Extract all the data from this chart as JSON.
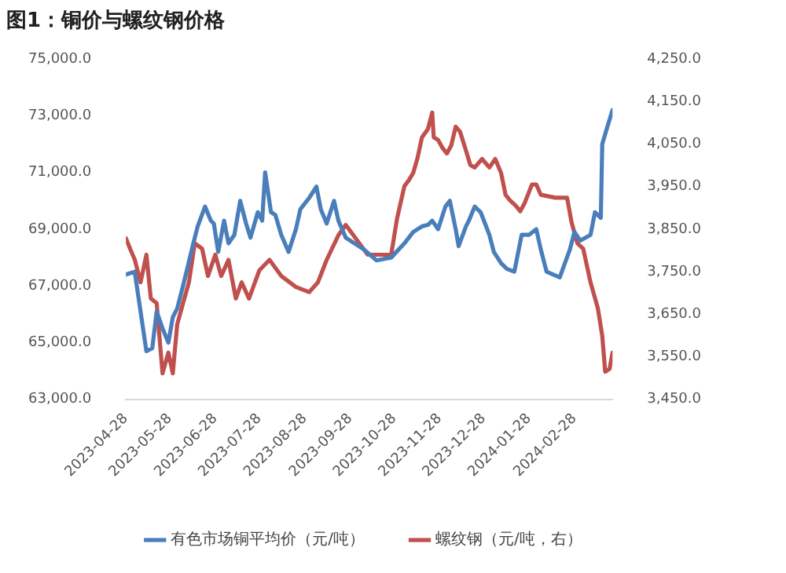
{
  "chart_data": {
    "type": "line",
    "title": "图1：铜价与螺纹钢价格",
    "xlim": [
      "2023-04-28",
      "2024-03-25"
    ],
    "xticks": [
      "2023-04-28",
      "2023-05-28",
      "2023-06-28",
      "2023-07-28",
      "2023-08-28",
      "2023-09-28",
      "2023-10-28",
      "2023-11-28",
      "2023-12-28",
      "2024-01-28",
      "2024-02-28"
    ],
    "ylim": [
      63000,
      75000
    ],
    "yticks": [
      {
        "value": 63000,
        "label": "63,000.0"
      },
      {
        "value": 65000,
        "label": "65,000.0"
      },
      {
        "value": 67000,
        "label": "67,000.0"
      },
      {
        "value": 69000,
        "label": "69,000.0"
      },
      {
        "value": 71000,
        "label": "71,000.0"
      },
      {
        "value": 73000,
        "label": "73,000.0"
      },
      {
        "value": 75000,
        "label": "75,000.0"
      }
    ],
    "y2lim": [
      3450,
      4250
    ],
    "y2ticks": [
      {
        "value": 3450,
        "label": "3,450.0"
      },
      {
        "value": 3550,
        "label": "3,550.0"
      },
      {
        "value": 3650,
        "label": "3,650.0"
      },
      {
        "value": 3750,
        "label": "3,750.0"
      },
      {
        "value": 3850,
        "label": "3,850.0"
      },
      {
        "value": 3950,
        "label": "3,950.0"
      },
      {
        "value": 4050,
        "label": "4,050.0"
      },
      {
        "value": 4150,
        "label": "4,150.0"
      },
      {
        "value": 4250,
        "label": "4,250.0"
      }
    ],
    "grid": false,
    "legend": "bottom",
    "marker": "none",
    "line_style": "solid",
    "series": [
      {
        "name": "有色市场铜平均价（元/吨）",
        "color": "#4a7ebb",
        "x": [
          "2023-04-28",
          "2023-05-04",
          "2023-05-12",
          "2023-05-16",
          "2023-05-19",
          "2023-05-23",
          "2023-05-27",
          "2023-05-30",
          "2023-06-02",
          "2023-06-06",
          "2023-06-13",
          "2023-06-16",
          "2023-06-21",
          "2023-06-25",
          "2023-06-27",
          "2023-06-30",
          "2023-07-04",
          "2023-07-07",
          "2023-07-11",
          "2023-07-15",
          "2023-07-19",
          "2023-07-22",
          "2023-07-27",
          "2023-07-30",
          "2023-08-01",
          "2023-08-05",
          "2023-08-08",
          "2023-08-12",
          "2023-08-17",
          "2023-08-22",
          "2023-08-25",
          "2023-08-31",
          "2023-09-05",
          "2023-09-08",
          "2023-09-12",
          "2023-09-17",
          "2023-09-20",
          "2023-09-25",
          "2023-10-07",
          "2023-10-16",
          "2023-10-26",
          "2023-11-04",
          "2023-11-10",
          "2023-11-16",
          "2023-11-20",
          "2023-11-23",
          "2023-11-27",
          "2023-12-02",
          "2023-12-05",
          "2023-12-09",
          "2023-12-11",
          "2023-12-16",
          "2023-12-18",
          "2023-12-22",
          "2023-12-26",
          "2024-01-01",
          "2024-01-04",
          "2024-01-09",
          "2024-01-13",
          "2024-01-18",
          "2024-01-23",
          "2024-01-28",
          "2024-02-02",
          "2024-02-05",
          "2024-02-09",
          "2024-02-18",
          "2024-02-25",
          "2024-02-28",
          "2024-03-03",
          "2024-03-10",
          "2024-03-13",
          "2024-03-17",
          "2024-03-18",
          "2024-03-22",
          "2024-03-25"
        ],
        "values": [
          67400,
          67500,
          64700,
          64800,
          66100,
          65500,
          65000,
          65900,
          66200,
          67000,
          68500,
          69100,
          69800,
          69300,
          69200,
          68200,
          69300,
          68500,
          68800,
          70000,
          69200,
          68700,
          69600,
          69300,
          71000,
          69600,
          69500,
          68800,
          68200,
          69000,
          69700,
          70100,
          70500,
          69700,
          69200,
          70000,
          69300,
          68700,
          68300,
          67900,
          68000,
          68500,
          68900,
          69100,
          69150,
          69300,
          69000,
          69800,
          70000,
          69000,
          68400,
          69100,
          69300,
          69800,
          69600,
          68800,
          68200,
          67800,
          67600,
          67500,
          68800,
          68800,
          69000,
          68300,
          67500,
          67300,
          68300,
          68900,
          68600,
          68800,
          69600,
          69400,
          72000,
          72700,
          73200
        ]
      },
      {
        "name": "螺纹钢（元/吨，右）",
        "color": "#c0504d",
        "axis": "y2",
        "x": [
          "2023-04-28",
          "2023-05-01",
          "2023-05-04",
          "2023-05-08",
          "2023-05-12",
          "2023-05-15",
          "2023-05-19",
          "2023-05-23",
          "2023-05-27",
          "2023-05-30",
          "2023-06-02",
          "2023-06-06",
          "2023-06-10",
          "2023-06-14",
          "2023-06-19",
          "2023-06-23",
          "2023-06-28",
          "2023-07-02",
          "2023-07-07",
          "2023-07-12",
          "2023-07-16",
          "2023-07-21",
          "2023-07-28",
          "2023-08-04",
          "2023-08-12",
          "2023-08-22",
          "2023-08-31",
          "2023-09-06",
          "2023-09-12",
          "2023-09-20",
          "2023-09-25",
          "2023-10-10",
          "2023-10-26",
          "2023-10-30",
          "2023-11-04",
          "2023-11-07",
          "2023-11-10",
          "2023-11-13",
          "2023-11-16",
          "2023-11-20",
          "2023-11-23",
          "2023-11-24",
          "2023-11-27",
          "2023-11-30",
          "2023-12-03",
          "2023-12-06",
          "2023-12-09",
          "2023-12-12",
          "2023-12-16",
          "2023-12-19",
          "2023-12-22",
          "2023-12-27",
          "2024-01-01",
          "2024-01-05",
          "2024-01-09",
          "2024-01-12",
          "2024-01-15",
          "2024-01-19",
          "2024-01-22",
          "2024-01-25",
          "2024-01-30",
          "2024-02-02",
          "2024-02-05",
          "2024-02-15",
          "2024-02-23",
          "2024-02-26",
          "2024-03-01",
          "2024-03-05",
          "2024-03-10",
          "2024-03-15",
          "2024-03-18",
          "2024-03-20",
          "2024-03-23",
          "2024-03-25"
        ],
        "values": [
          3829,
          3803,
          3779,
          3725,
          3790,
          3687,
          3676,
          3511,
          3560,
          3511,
          3626,
          3676,
          3725,
          3817,
          3804,
          3740,
          3790,
          3740,
          3778,
          3687,
          3725,
          3687,
          3753,
          3778,
          3740,
          3714,
          3702,
          3725,
          3778,
          3836,
          3860,
          3790,
          3790,
          3875,
          3951,
          3965,
          3982,
          4018,
          4066,
          4085,
          4124,
          4066,
          4060,
          4041,
          4028,
          4047,
          4091,
          4079,
          4035,
          4001,
          3995,
          4015,
          3995,
          4015,
          3982,
          3931,
          3918,
          3905,
          3892,
          3911,
          3955,
          3955,
          3931,
          3924,
          3924,
          3867,
          3817,
          3804,
          3725,
          3664,
          3599,
          3515,
          3522,
          3560
        ]
      }
    ]
  }
}
